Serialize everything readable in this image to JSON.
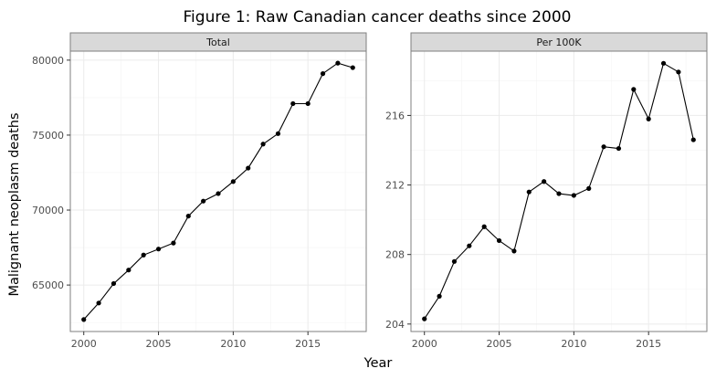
{
  "title": "Figure 1: Raw Canadian cancer deaths since 2000",
  "xlabel": "Year",
  "ylabel": "Malignant neoplasm deaths",
  "chart_data": [
    {
      "type": "line",
      "panel_label": "Total",
      "x": [
        2000,
        2001,
        2002,
        2003,
        2004,
        2005,
        2006,
        2007,
        2008,
        2009,
        2010,
        2011,
        2012,
        2013,
        2014,
        2015,
        2016,
        2017,
        2018
      ],
      "y": [
        62700,
        63800,
        65100,
        66000,
        67000,
        67400,
        67800,
        69600,
        70600,
        71100,
        71900,
        72800,
        74400,
        75100,
        77100,
        77100,
        79100,
        79800,
        79500
      ],
      "xlim": [
        1999.1,
        2018.9
      ],
      "ylim": [
        61900,
        80600
      ],
      "xticks": [
        2000,
        2005,
        2010,
        2015
      ],
      "yticks": [
        65000,
        70000,
        75000,
        80000
      ],
      "grid": true
    },
    {
      "type": "line",
      "panel_label": "Per 100K",
      "x": [
        2000,
        2001,
        2002,
        2003,
        2004,
        2005,
        2006,
        2007,
        2008,
        2009,
        2010,
        2011,
        2012,
        2013,
        2014,
        2015,
        2016,
        2017,
        2018
      ],
      "y": [
        204.3,
        205.6,
        207.6,
        208.5,
        209.6,
        208.8,
        208.2,
        211.6,
        212.2,
        211.5,
        211.4,
        211.8,
        214.2,
        214.1,
        217.5,
        215.8,
        219.0,
        218.5,
        214.6
      ],
      "xlim": [
        1999.1,
        2018.9
      ],
      "ylim": [
        203.57,
        219.7
      ],
      "xticks": [
        2000,
        2005,
        2010,
        2015
      ],
      "yticks": [
        204,
        208,
        212,
        216
      ],
      "grid": true
    }
  ]
}
